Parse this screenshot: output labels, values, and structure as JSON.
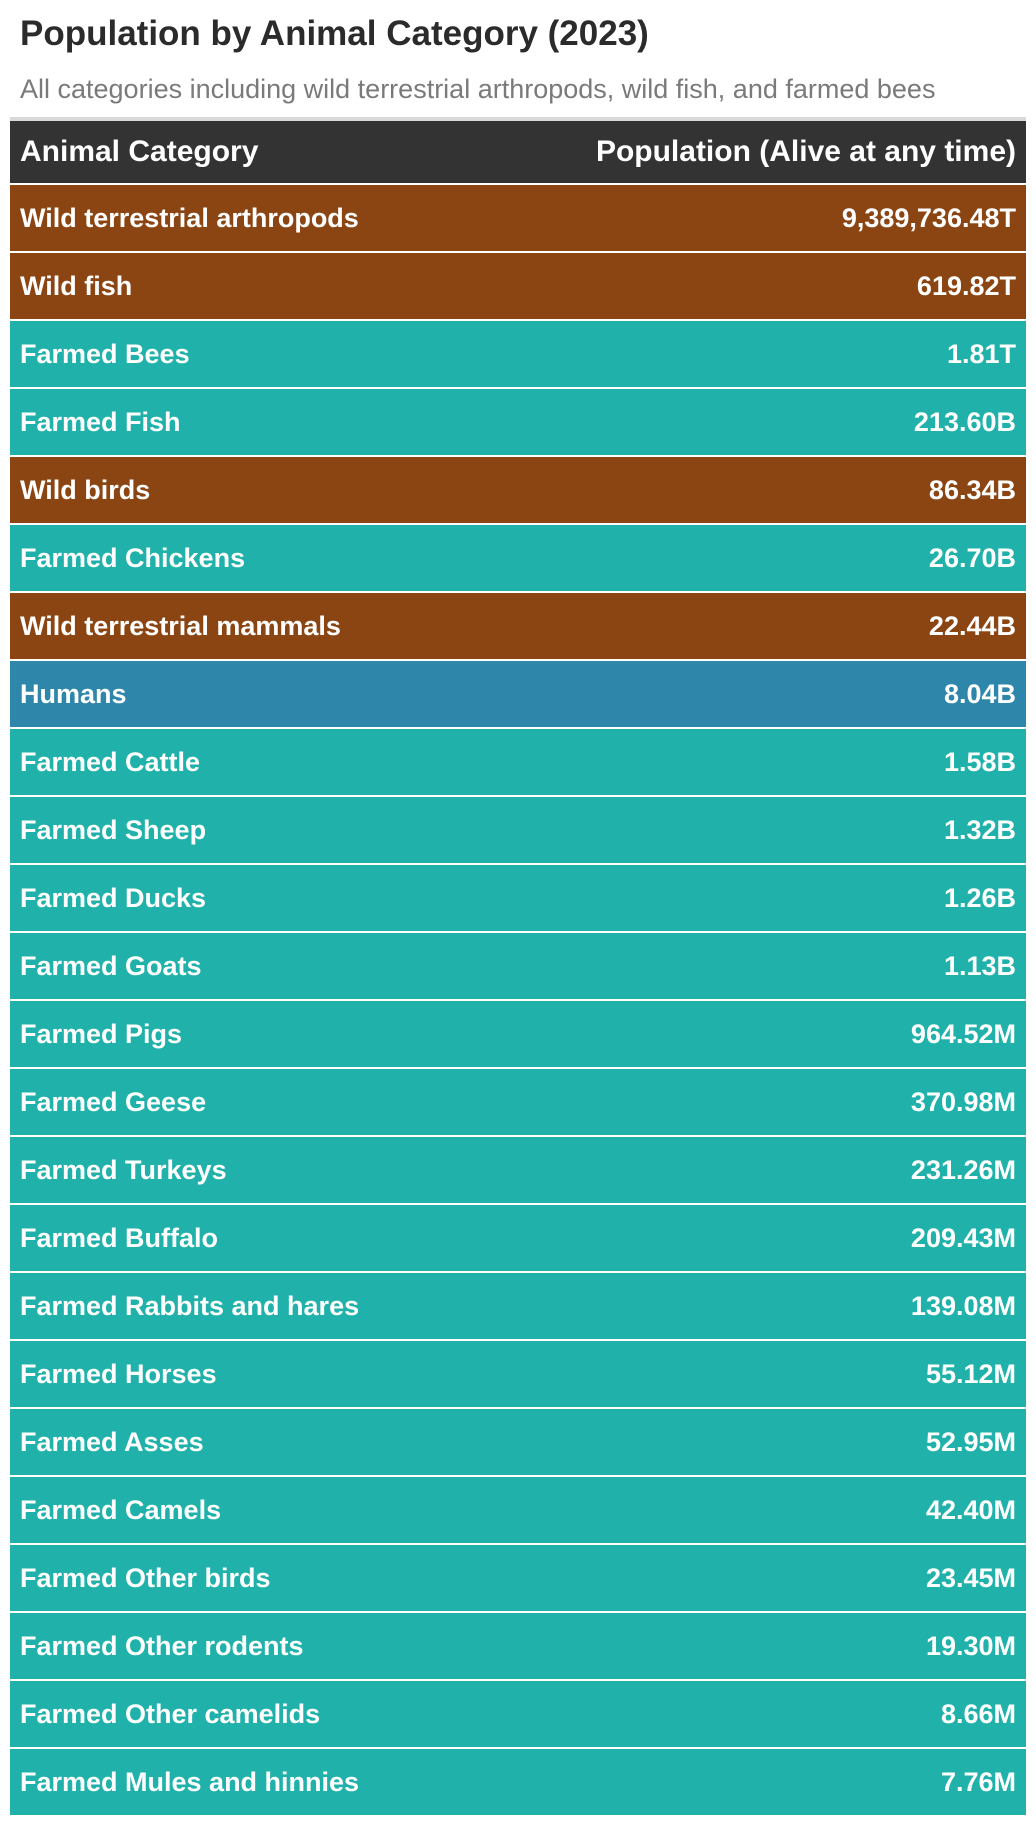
{
  "chart_data": {
    "type": "table",
    "title": "Population by Animal Category (2023)",
    "subtitle": "All categories including wild terrestrial arthropods, wild fish, and farmed bees",
    "columns": [
      "Animal Category",
      "Population (Alive at any time)"
    ],
    "colors": {
      "header": "#333333",
      "wild": "#8b4513",
      "farmed": "#20b2aa",
      "human": "#2e86ab"
    },
    "rows": [
      {
        "category": "Wild terrestrial arthropods",
        "population": "9,389,736.48T",
        "group": "wild"
      },
      {
        "category": "Wild fish",
        "population": "619.82T",
        "group": "wild"
      },
      {
        "category": "Farmed Bees",
        "population": "1.81T",
        "group": "farmed"
      },
      {
        "category": "Farmed Fish",
        "population": "213.60B",
        "group": "farmed"
      },
      {
        "category": "Wild birds",
        "population": "86.34B",
        "group": "wild"
      },
      {
        "category": "Farmed Chickens",
        "population": "26.70B",
        "group": "farmed"
      },
      {
        "category": "Wild terrestrial mammals",
        "population": "22.44B",
        "group": "wild"
      },
      {
        "category": "Humans",
        "population": "8.04B",
        "group": "human"
      },
      {
        "category": "Farmed Cattle",
        "population": "1.58B",
        "group": "farmed"
      },
      {
        "category": "Farmed Sheep",
        "population": "1.32B",
        "group": "farmed"
      },
      {
        "category": "Farmed Ducks",
        "population": "1.26B",
        "group": "farmed"
      },
      {
        "category": "Farmed Goats",
        "population": "1.13B",
        "group": "farmed"
      },
      {
        "category": "Farmed Pigs",
        "population": "964.52M",
        "group": "farmed"
      },
      {
        "category": "Farmed Geese",
        "population": "370.98M",
        "group": "farmed"
      },
      {
        "category": "Farmed Turkeys",
        "population": "231.26M",
        "group": "farmed"
      },
      {
        "category": "Farmed Buffalo",
        "population": "209.43M",
        "group": "farmed"
      },
      {
        "category": "Farmed Rabbits and hares",
        "population": "139.08M",
        "group": "farmed"
      },
      {
        "category": "Farmed Horses",
        "population": "55.12M",
        "group": "farmed"
      },
      {
        "category": "Farmed Asses",
        "population": "52.95M",
        "group": "farmed"
      },
      {
        "category": "Farmed Camels",
        "population": "42.40M",
        "group": "farmed"
      },
      {
        "category": "Farmed Other birds",
        "population": "23.45M",
        "group": "farmed"
      },
      {
        "category": "Farmed Other rodents",
        "population": "19.30M",
        "group": "farmed"
      },
      {
        "category": "Farmed Other camelids",
        "population": "8.66M",
        "group": "farmed"
      },
      {
        "category": "Farmed Mules and hinnies",
        "population": "7.76M",
        "group": "farmed"
      }
    ]
  }
}
